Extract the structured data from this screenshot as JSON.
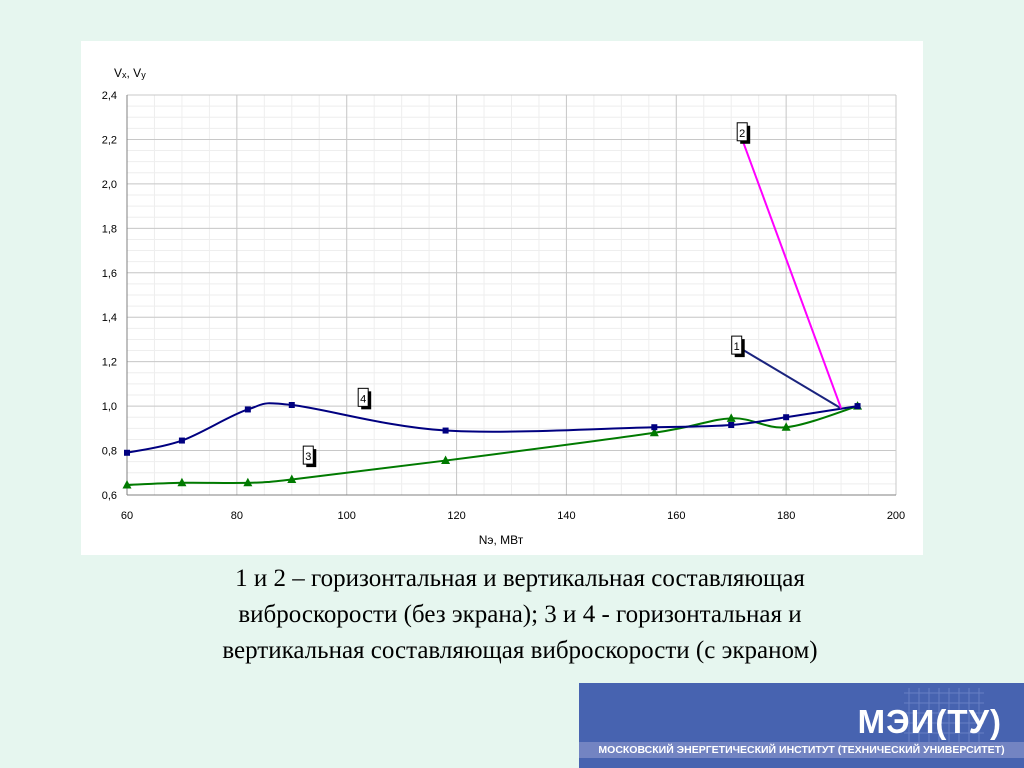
{
  "chart_data": {
    "type": "line",
    "ylabel_parts": [
      "V",
      "x",
      ", V",
      "y"
    ],
    "xlabel": "Nэ, МВт",
    "xlim": [
      60,
      200
    ],
    "ylim": [
      0.6,
      2.4
    ],
    "x_ticks": [
      60,
      80,
      100,
      120,
      140,
      160,
      180,
      200
    ],
    "y_ticks": [
      0.6,
      0.8,
      1.0,
      1.2,
      1.4,
      1.6,
      1.8,
      2.0,
      2.2,
      2.4
    ],
    "y_tick_labels": [
      "0,6",
      "0,8",
      "1,0",
      "1,2",
      "1,4",
      "1,6",
      "1,8",
      "2,0",
      "2,2",
      "2,4"
    ],
    "grid": true,
    "series": [
      {
        "label": "1",
        "color": "#1a237e",
        "marker": "none",
        "smooth": false,
        "x": [
          171,
          190
        ],
        "y": [
          1.27,
          0.99
        ],
        "label_at": [
          171,
          1.27
        ]
      },
      {
        "label": "2",
        "color": "#ff00ff",
        "marker": "none",
        "smooth": false,
        "x": [
          172,
          190
        ],
        "y": [
          2.2,
          0.99
        ],
        "label_at": [
          172,
          2.23
        ]
      },
      {
        "label": "3",
        "color": "#007a00",
        "marker": "triangle",
        "smooth": true,
        "x": [
          60,
          70,
          82,
          90,
          118,
          156,
          170,
          180,
          193
        ],
        "y": [
          0.645,
          0.655,
          0.655,
          0.67,
          0.755,
          0.88,
          0.945,
          0.905,
          1.0
        ],
        "label_at": [
          93,
          0.775
        ]
      },
      {
        "label": "4",
        "color": "#000080",
        "marker": "square",
        "smooth": true,
        "x": [
          60,
          70,
          82,
          90,
          118,
          156,
          170,
          180,
          193
        ],
        "y": [
          0.79,
          0.845,
          0.985,
          1.005,
          0.89,
          0.905,
          0.915,
          0.95,
          1.0
        ],
        "label_at": [
          103,
          1.035
        ]
      }
    ]
  },
  "caption": {
    "line1": "1 и 2 – горизонтальная и вертикальная составляющая",
    "line2": "виброскорости (без экрана); 3 и 4 - горизонтальная и",
    "line3": "вертикальная составляющая виброскорости (с экраном)"
  },
  "footer": {
    "name": "МЭИ(ТУ)",
    "full_name": "МОСКОВСКИЙ ЭНЕРГЕТИЧЕСКИЙ ИНСТИТУТ (ТЕХНИЧЕСКИЙ УНИВЕРСИТЕТ)"
  }
}
